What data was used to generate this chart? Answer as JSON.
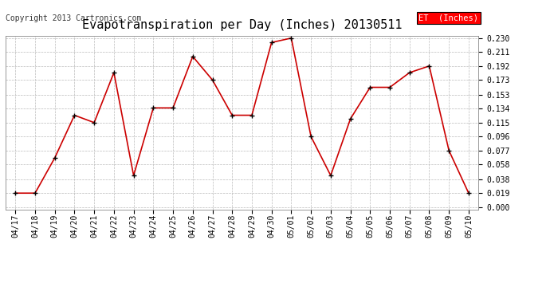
{
  "title": "Evapotranspiration per Day (Inches) 20130511",
  "copyright": "Copyright 2013 Cartronics.com",
  "legend_label": "ET  (Inches)",
  "line_color": "#cc0000",
  "marker_color": "#000000",
  "bg_color": "#ffffff",
  "grid_color": "#bbbbbb",
  "categories": [
    "04/17",
    "04/18",
    "04/19",
    "04/20",
    "04/21",
    "04/22",
    "04/23",
    "04/24",
    "04/25",
    "04/26",
    "04/27",
    "04/28",
    "04/29",
    "04/30",
    "05/01",
    "05/02",
    "05/03",
    "05/04",
    "05/05",
    "05/06",
    "05/07",
    "05/08",
    "05/09",
    "05/10"
  ],
  "values": [
    0.019,
    0.019,
    0.067,
    0.125,
    0.115,
    0.183,
    0.043,
    0.135,
    0.135,
    0.205,
    0.173,
    0.125,
    0.125,
    0.224,
    0.23,
    0.096,
    0.043,
    0.12,
    0.163,
    0.163,
    0.183,
    0.192,
    0.077,
    0.019
  ],
  "yticks": [
    0.0,
    0.019,
    0.038,
    0.058,
    0.077,
    0.096,
    0.115,
    0.134,
    0.153,
    0.173,
    0.192,
    0.211,
    0.23
  ],
  "title_fontsize": 11,
  "axis_fontsize": 7,
  "copyright_fontsize": 7,
  "legend_fontsize": 7.5
}
